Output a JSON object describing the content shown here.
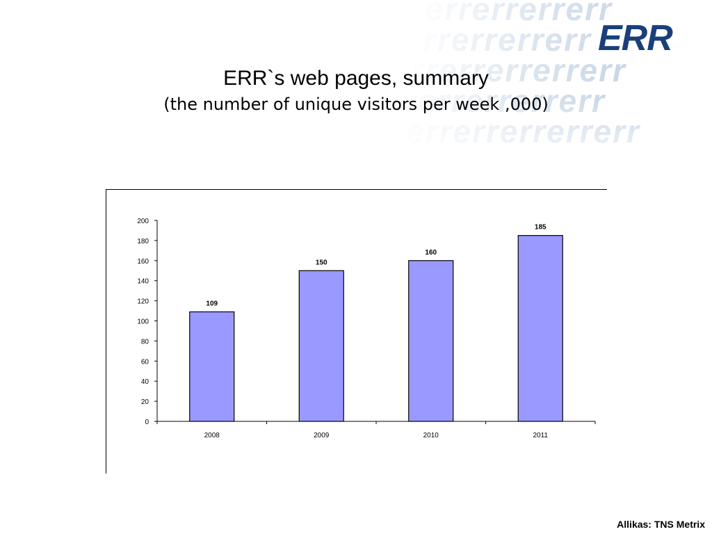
{
  "slide": {
    "title": "ERR`s web pages, summary",
    "subtitle": "(the number of unique visitors per week ,000)",
    "logo_text": "ERR",
    "source": "Allikas: TNS Metrix"
  },
  "colors": {
    "bar_fill": "#9999ff",
    "bar_stroke": "#000000",
    "logo": "#1a3f7a",
    "watermark": "#c9d7e6"
  },
  "chart_data": {
    "type": "bar",
    "categories": [
      "2008",
      "2009",
      "2010",
      "2011"
    ],
    "values": [
      109,
      150,
      160,
      185
    ],
    "data_labels": [
      "109",
      "150",
      "160",
      "185"
    ],
    "ylim": [
      0,
      200
    ],
    "yticks": [
      0,
      20,
      40,
      60,
      80,
      100,
      120,
      140,
      160,
      180,
      200
    ],
    "ytick_labels": [
      "0",
      "20",
      "40",
      "60",
      "80",
      "100",
      "120",
      "140",
      "160",
      "180",
      "200"
    ],
    "grid": false,
    "legend": "none"
  }
}
